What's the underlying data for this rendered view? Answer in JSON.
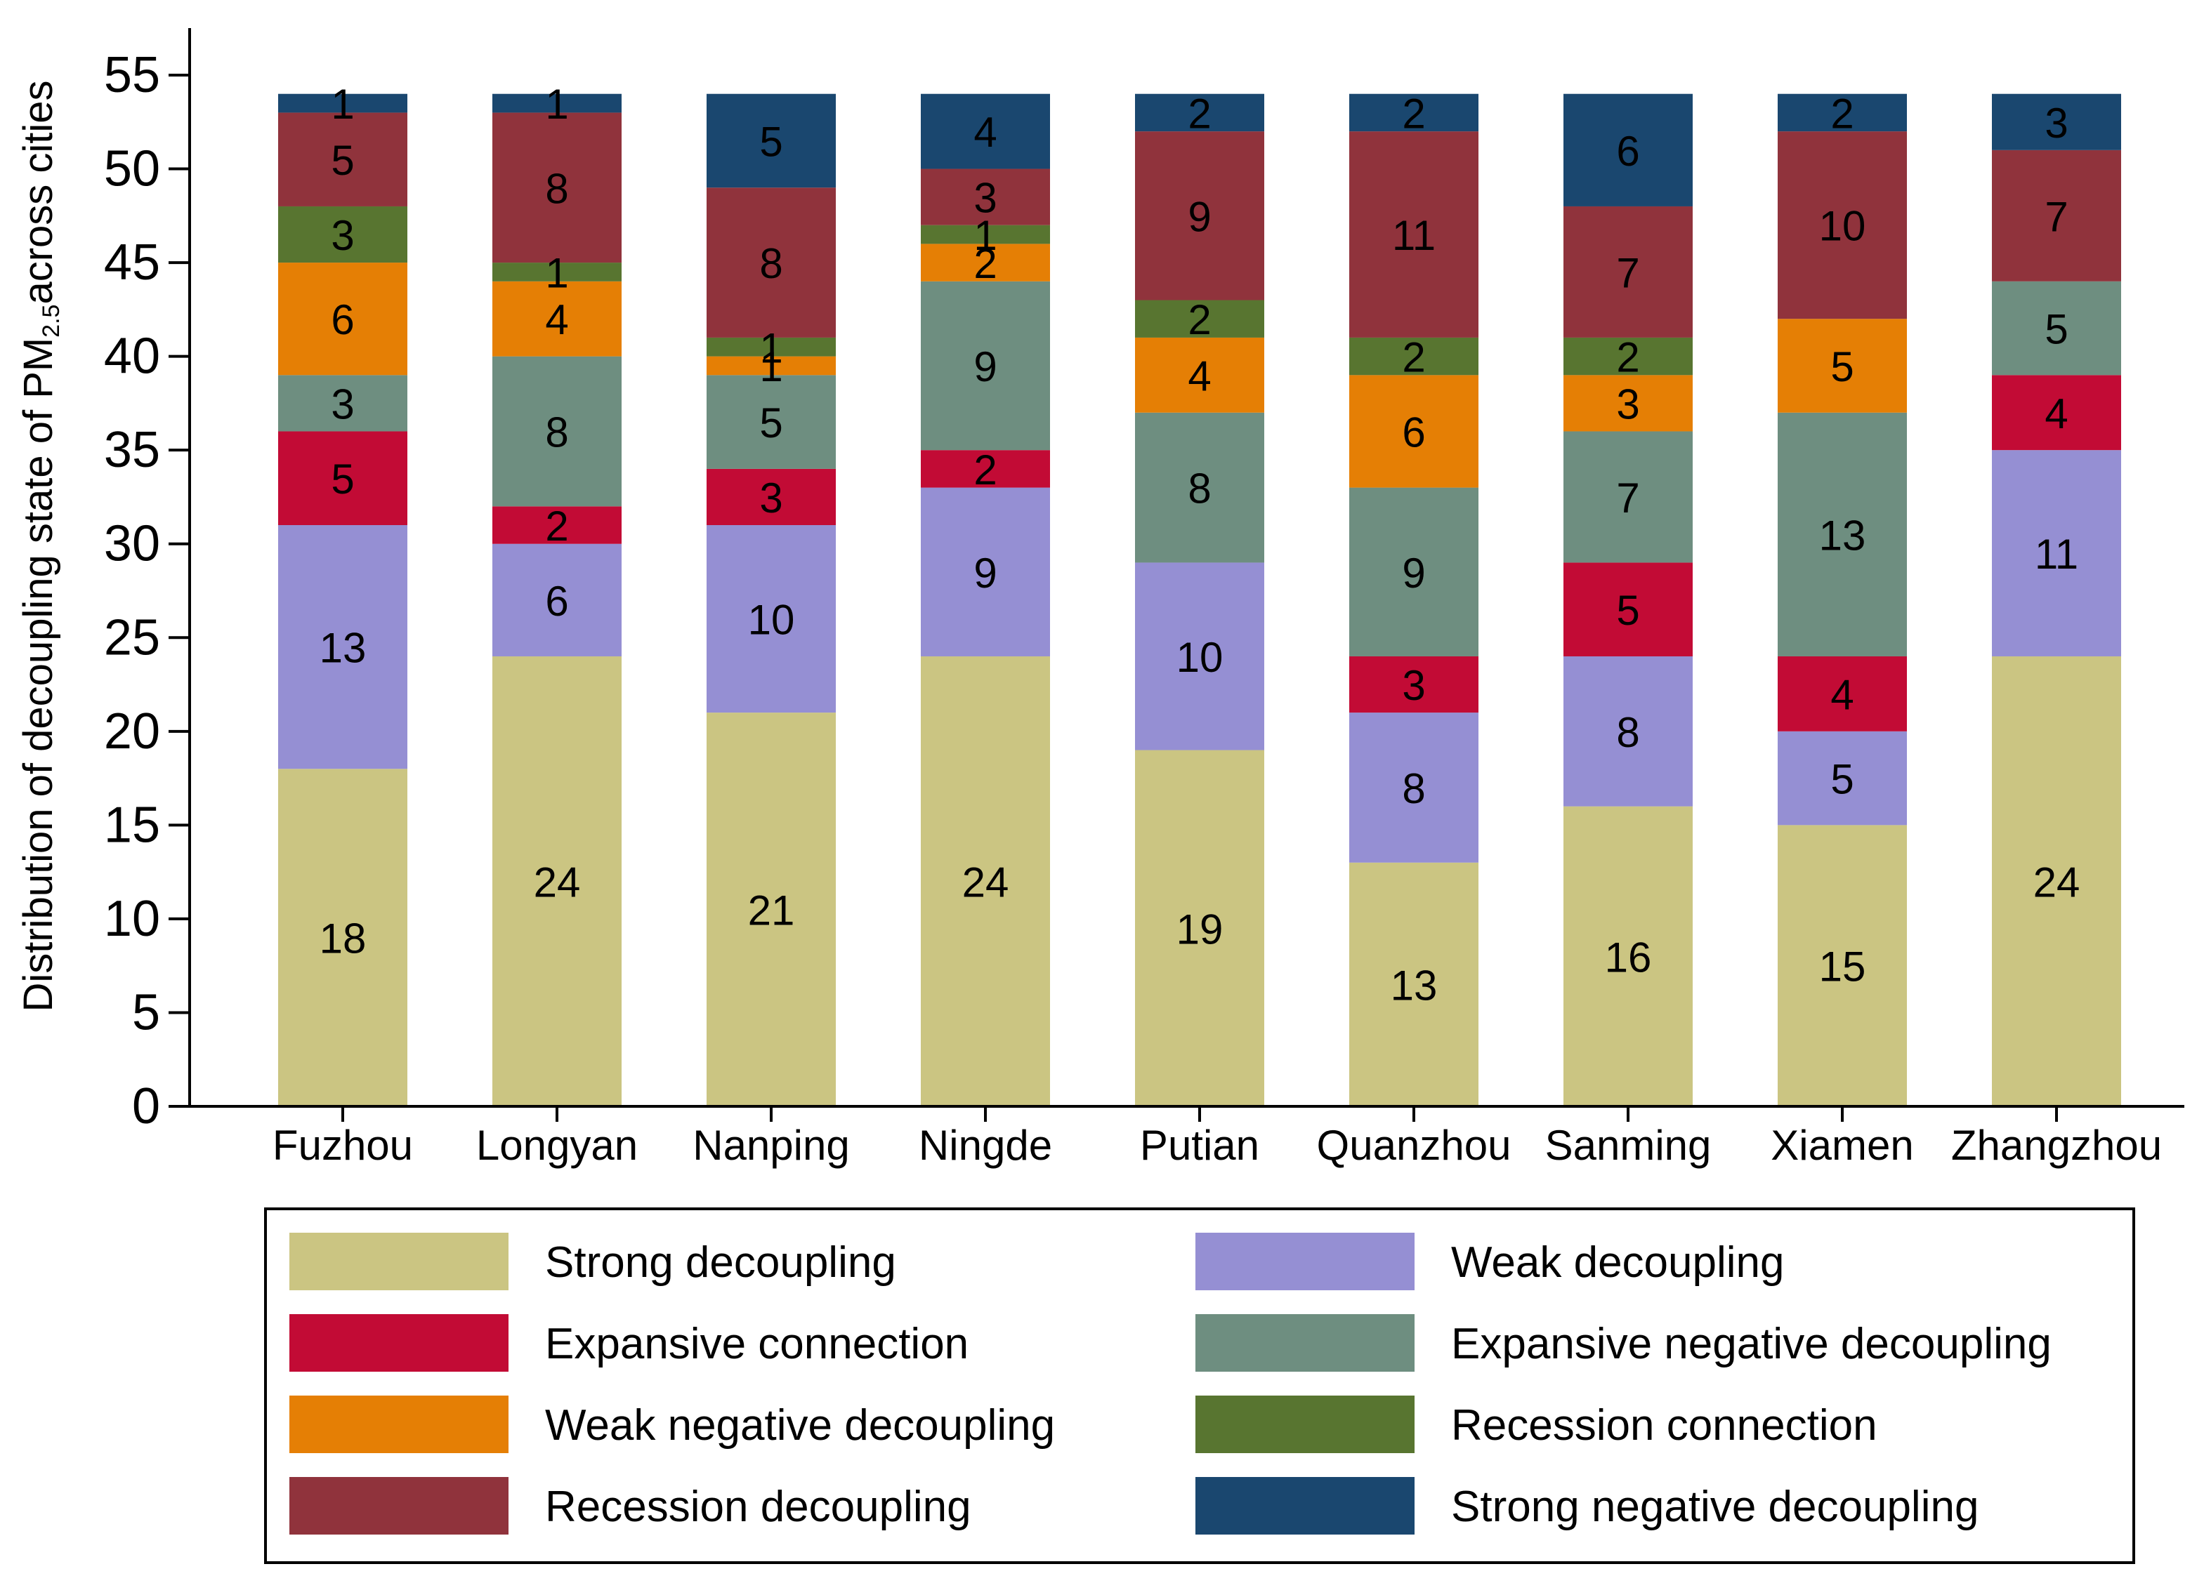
{
  "chart_data": {
    "type": "bar",
    "stacked": true,
    "title": "",
    "xlabel": "",
    "ylabel_parts": {
      "prefix": "Distribution of decoupling state of PM",
      "subscript": "2.5",
      "suffix": "across cities"
    },
    "ylim": [
      0,
      55
    ],
    "yticks": [
      "0",
      "5",
      "10",
      "15",
      "20",
      "25",
      "30",
      "35",
      "40",
      "45",
      "50",
      "55"
    ],
    "ytick_values": [
      0,
      5,
      10,
      15,
      20,
      25,
      30,
      35,
      40,
      45,
      50,
      55
    ],
    "categories": [
      "Fuzhou",
      "Longyan",
      "Nanping",
      "Ningde",
      "Putian",
      "Quanzhou",
      "Sanming",
      "Xiamen",
      "Zhangzhou"
    ],
    "series": [
      {
        "name": "Strong decoupling",
        "color": "#CBC582",
        "values": [
          18,
          24,
          21,
          24,
          19,
          13,
          16,
          15,
          24
        ]
      },
      {
        "name": "Weak decoupling",
        "color": "#958FD3",
        "values": [
          13,
          6,
          10,
          9,
          10,
          8,
          8,
          5,
          11
        ]
      },
      {
        "name": "Expansive connection",
        "color": "#C20B35",
        "values": [
          5,
          2,
          3,
          2,
          0,
          3,
          5,
          4,
          4
        ]
      },
      {
        "name": "Expansive negative decoupling",
        "color": "#6E8E80",
        "values": [
          3,
          8,
          5,
          9,
          8,
          9,
          7,
          13,
          5
        ]
      },
      {
        "name": "Weak negative decoupling",
        "color": "#E57F05",
        "values": [
          6,
          4,
          1,
          2,
          4,
          6,
          3,
          5,
          0
        ]
      },
      {
        "name": "Recession connection",
        "color": "#587530",
        "values": [
          3,
          1,
          1,
          1,
          2,
          2,
          2,
          0,
          0
        ]
      },
      {
        "name": "Recession decoupling",
        "color": "#90333C",
        "values": [
          5,
          8,
          8,
          3,
          9,
          11,
          7,
          10,
          7
        ]
      },
      {
        "name": "Strong negative decoupling",
        "color": "#1A476F",
        "values": [
          1,
          1,
          5,
          4,
          2,
          2,
          6,
          2,
          3
        ]
      }
    ],
    "legend_position": "bottom",
    "grid": false
  }
}
